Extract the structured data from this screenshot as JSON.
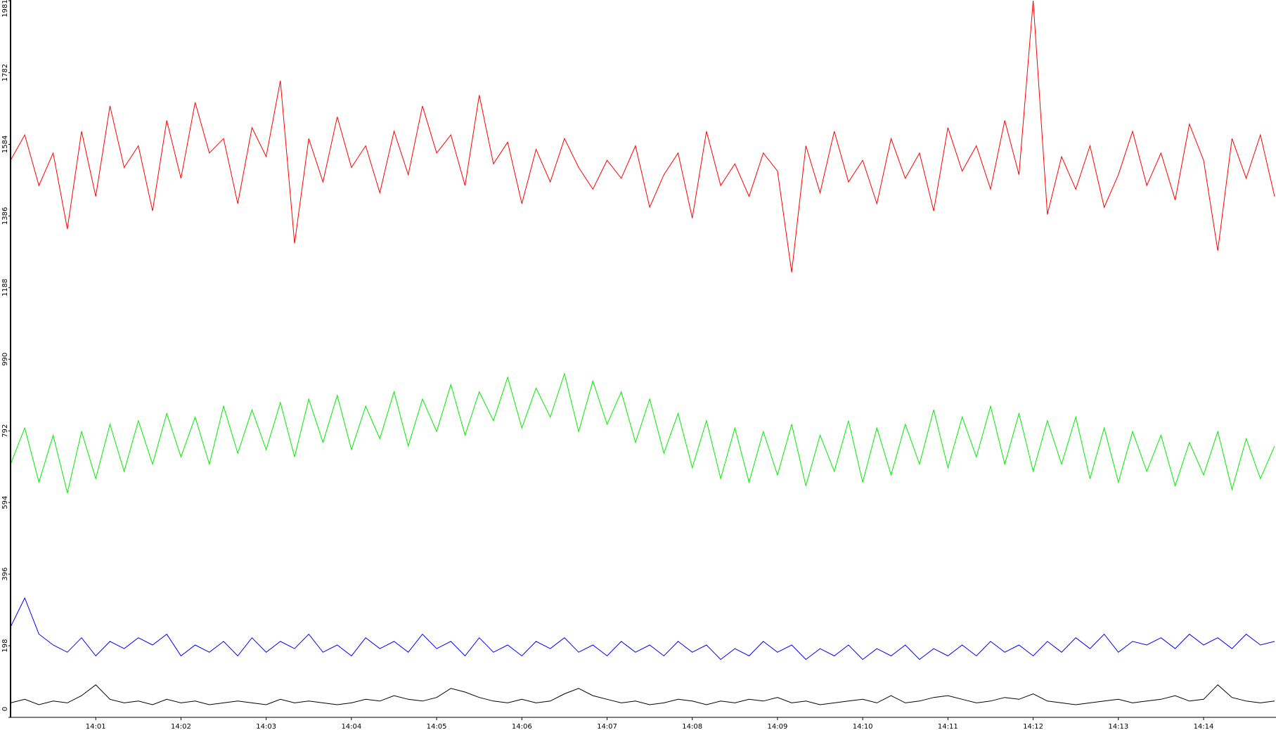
{
  "chart_data": {
    "type": "line",
    "categories": [
      null,
      null,
      null,
      null,
      null,
      null,
      "14:01",
      null,
      null,
      null,
      null,
      null,
      "14:02",
      null,
      null,
      null,
      null,
      null,
      "14:03",
      null,
      null,
      null,
      null,
      null,
      "14:04",
      null,
      null,
      null,
      null,
      null,
      "14:05",
      null,
      null,
      null,
      null,
      null,
      "14:06",
      null,
      null,
      null,
      null,
      null,
      "14:07",
      null,
      null,
      null,
      null,
      null,
      "14:08",
      null,
      null,
      null,
      null,
      null,
      "14:09",
      null,
      null,
      null,
      null,
      null,
      "14:10",
      null,
      null,
      null,
      null,
      null,
      "14:11",
      null,
      null,
      null,
      null,
      null,
      "14:12",
      null,
      null,
      null,
      null,
      null,
      "14:13",
      null,
      null,
      null,
      null,
      null,
      "14:14",
      null,
      null,
      null,
      null,
      null
    ],
    "series": [
      {
        "color": "#ff0000",
        "values": [
          1540,
          1610,
          1470,
          1560,
          1350,
          1620,
          1440,
          1690,
          1520,
          1580,
          1400,
          1650,
          1490,
          1700,
          1560,
          1600,
          1420,
          1630,
          1550,
          1760,
          1310,
          1600,
          1480,
          1660,
          1520,
          1580,
          1450,
          1620,
          1500,
          1690,
          1560,
          1610,
          1470,
          1720,
          1530,
          1590,
          1420,
          1570,
          1480,
          1600,
          1520,
          1460,
          1540,
          1490,
          1580,
          1410,
          1500,
          1560,
          1380,
          1620,
          1470,
          1530,
          1440,
          1560,
          1510,
          1230,
          1580,
          1450,
          1620,
          1480,
          1540,
          1420,
          1600,
          1490,
          1560,
          1400,
          1630,
          1510,
          1580,
          1460,
          1650,
          1500,
          1981,
          1390,
          1550,
          1460,
          1580,
          1410,
          1500,
          1620,
          1470,
          1560,
          1430,
          1640,
          1540,
          1290,
          1600,
          1490,
          1610,
          1440
        ]
      },
      {
        "color": "#00ee00",
        "values": [
          700,
          800,
          650,
          780,
          620,
          790,
          660,
          810,
          680,
          820,
          700,
          840,
          720,
          830,
          700,
          860,
          730,
          850,
          740,
          870,
          720,
          880,
          760,
          890,
          740,
          860,
          770,
          900,
          750,
          880,
          790,
          920,
          780,
          900,
          820,
          940,
          800,
          910,
          830,
          950,
          790,
          930,
          810,
          900,
          760,
          880,
          730,
          840,
          690,
          820,
          660,
          800,
          650,
          790,
          670,
          810,
          640,
          780,
          680,
          820,
          650,
          800,
          670,
          810,
          700,
          850,
          690,
          830,
          720,
          860,
          700,
          840,
          680,
          820,
          700,
          830,
          660,
          800,
          650,
          790,
          680,
          780,
          640,
          760,
          670,
          790,
          630,
          770,
          660,
          750
        ]
      },
      {
        "color": "#0000ff",
        "values": [
          250,
          330,
          230,
          200,
          180,
          220,
          170,
          210,
          190,
          220,
          200,
          230,
          170,
          200,
          180,
          210,
          170,
          220,
          180,
          210,
          190,
          230,
          180,
          200,
          170,
          220,
          190,
          210,
          180,
          230,
          190,
          210,
          170,
          220,
          180,
          200,
          170,
          210,
          190,
          220,
          180,
          200,
          170,
          210,
          180,
          200,
          170,
          210,
          180,
          200,
          160,
          190,
          170,
          210,
          180,
          200,
          160,
          190,
          170,
          200,
          160,
          190,
          170,
          200,
          160,
          190,
          170,
          200,
          170,
          210,
          180,
          200,
          170,
          210,
          180,
          220,
          190,
          230,
          180,
          210,
          200,
          220,
          190,
          230,
          200,
          220,
          190,
          230,
          200,
          210
        ]
      },
      {
        "color": "#000000",
        "values": [
          40,
          50,
          35,
          45,
          40,
          60,
          90,
          50,
          40,
          45,
          35,
          50,
          40,
          45,
          35,
          40,
          45,
          40,
          35,
          50,
          40,
          45,
          40,
          35,
          40,
          50,
          45,
          60,
          50,
          45,
          55,
          80,
          70,
          55,
          45,
          40,
          50,
          40,
          45,
          65,
          80,
          60,
          50,
          40,
          45,
          35,
          40,
          50,
          45,
          35,
          45,
          40,
          50,
          45,
          55,
          40,
          45,
          35,
          40,
          45,
          50,
          40,
          60,
          40,
          45,
          55,
          60,
          50,
          40,
          45,
          55,
          50,
          65,
          45,
          40,
          35,
          40,
          45,
          50,
          40,
          45,
          50,
          60,
          45,
          50,
          90,
          55,
          45,
          40,
          45
        ]
      }
    ],
    "ylim": [
      0,
      1981
    ],
    "yticks": [
      0,
      198,
      396,
      594,
      792,
      990,
      1188,
      1386,
      1584,
      1782,
      1981
    ]
  }
}
